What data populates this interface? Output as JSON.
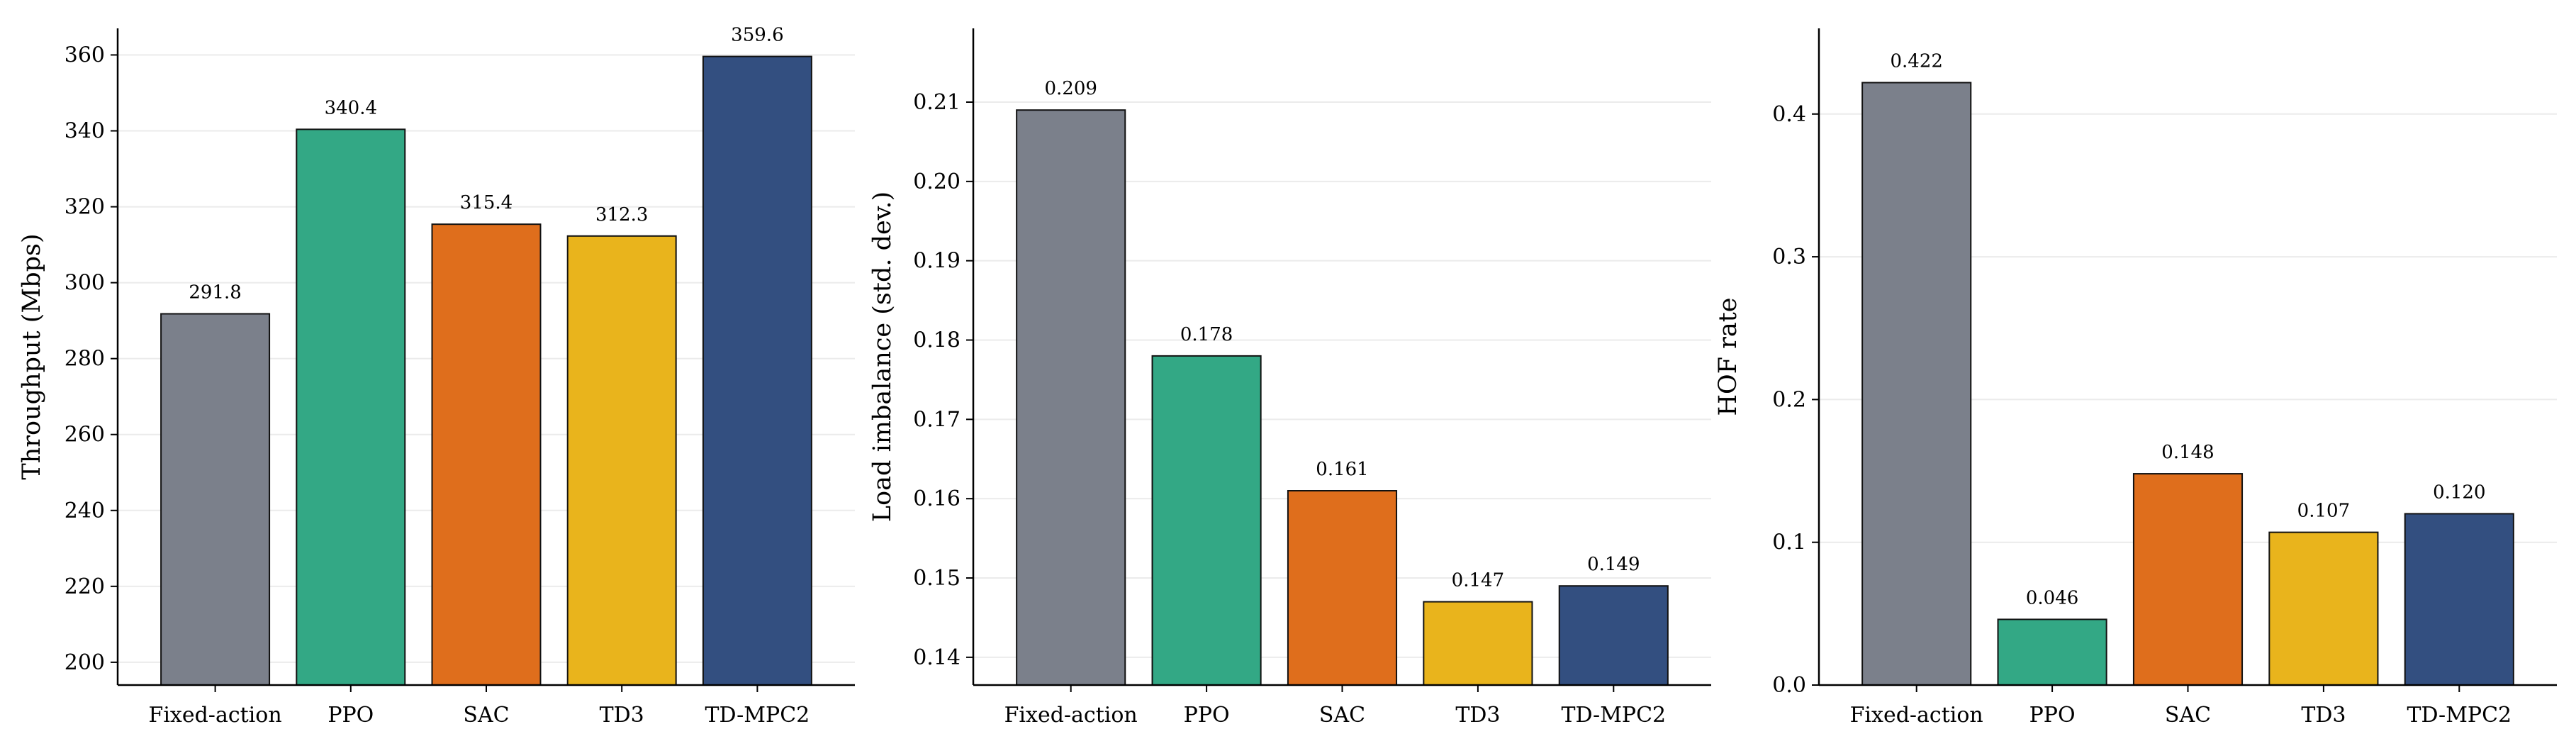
{
  "colors": {
    "Fixed-action": "#7b808b",
    "PPO": "#33a885",
    "SAC": "#df6e1c",
    "TD3": "#e9b41c",
    "TD-MPC2": "#334f80",
    "bar_edge": "#111111",
    "grid": "#ebebeb",
    "axis": "#000000"
  },
  "chart_data": [
    {
      "type": "bar",
      "categories": [
        "Fixed-action",
        "PPO",
        "SAC",
        "TD3",
        "TD-MPC2"
      ],
      "values": [
        291.8,
        340.4,
        315.4,
        312.3,
        359.6
      ],
      "value_labels": [
        "291.8",
        "340.4",
        "315.4",
        "312.3",
        "359.6"
      ],
      "ylabel": "Throughput (Mbps)",
      "xlabel": "",
      "ylim": [
        194,
        367
      ],
      "yticks": [
        200,
        220,
        240,
        260,
        280,
        300,
        320,
        340,
        360
      ],
      "ytick_labels": [
        "200",
        "220",
        "240",
        "260",
        "280",
        "300",
        "320",
        "340",
        "360"
      ],
      "grid": "y"
    },
    {
      "type": "bar",
      "categories": [
        "Fixed-action",
        "PPO",
        "SAC",
        "TD3",
        "TD-MPC2"
      ],
      "values": [
        0.209,
        0.178,
        0.161,
        0.147,
        0.149
      ],
      "value_labels": [
        "0.209",
        "0.178",
        "0.161",
        "0.147",
        "0.149"
      ],
      "ylabel": "Load imbalance (std. dev.)",
      "xlabel": "",
      "ylim": [
        0.1365,
        0.2193
      ],
      "yticks": [
        0.14,
        0.15,
        0.16,
        0.17,
        0.18,
        0.19,
        0.2,
        0.21
      ],
      "ytick_labels": [
        "0.14",
        "0.15",
        "0.16",
        "0.17",
        "0.18",
        "0.19",
        "0.20",
        "0.21"
      ],
      "grid": "y"
    },
    {
      "type": "bar",
      "categories": [
        "Fixed-action",
        "PPO",
        "SAC",
        "TD3",
        "TD-MPC2"
      ],
      "values": [
        0.422,
        0.046,
        0.148,
        0.107,
        0.12
      ],
      "value_labels": [
        "0.422",
        "0.046",
        "0.148",
        "0.107",
        "0.120"
      ],
      "ylabel": "HOF rate",
      "xlabel": "",
      "ylim": [
        0,
        0.46
      ],
      "yticks": [
        0,
        0.1,
        0.2,
        0.3,
        0.4
      ],
      "ytick_labels": [
        "0.0",
        "0.1",
        "0.2",
        "0.3",
        "0.4"
      ],
      "grid": "y"
    }
  ]
}
